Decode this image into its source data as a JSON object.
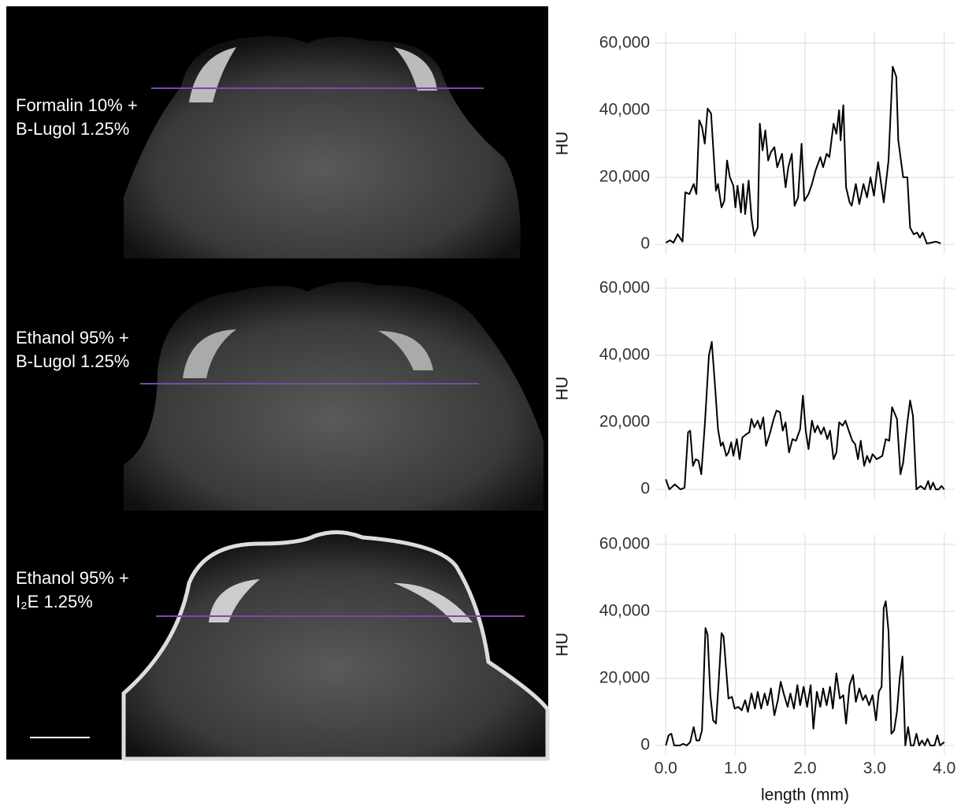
{
  "images": [
    {
      "label": [
        "Formalin 10% +",
        "B-Lugol 1.25%"
      ]
    },
    {
      "label": [
        "Ethanol 95% +",
        "B-Lugol 1.25%"
      ]
    },
    {
      "label": [
        "Ethanol 95% +",
        "I₂E 1.25%"
      ]
    }
  ],
  "chart_data": [
    {
      "type": "line",
      "ylabel": "HU",
      "color": "#000000",
      "grid": true,
      "xtick_labels": false,
      "xlim": [
        -0.15,
        4.15
      ],
      "ylim": [
        -2800,
        63000
      ],
      "xticks": [
        0,
        1,
        2,
        3,
        4
      ],
      "yticks": [
        0,
        {
          "value": 20000,
          "label": "20,000"
        },
        {
          "value": 40000,
          "label": "40,000"
        },
        {
          "value": 60000,
          "label": "60,000"
        }
      ],
      "x": [
        0,
        0.06,
        0.11,
        0.17,
        0.24,
        0.28,
        0.34,
        0.4,
        0.44,
        0.48,
        0.52,
        0.56,
        0.6,
        0.65,
        0.72,
        0.75,
        0.8,
        0.84,
        0.88,
        0.92,
        0.97,
        1.0,
        1.03,
        1.08,
        1.11,
        1.14,
        1.19,
        1.23,
        1.27,
        1.32,
        1.35,
        1.39,
        1.43,
        1.47,
        1.51,
        1.56,
        1.6,
        1.67,
        1.72,
        1.76,
        1.81,
        1.85,
        1.9,
        1.95,
        1.99,
        2.05,
        2.1,
        2.15,
        2.22,
        2.26,
        2.31,
        2.35,
        2.41,
        2.45,
        2.49,
        2.51,
        2.55,
        2.59,
        2.64,
        2.67,
        2.73,
        2.78,
        2.84,
        2.89,
        2.94,
        2.99,
        3.05,
        3.13,
        3.2,
        3.26,
        3.31,
        3.34,
        3.41,
        3.47,
        3.51,
        3.56,
        3.61,
        3.65,
        3.69,
        3.75,
        3.81,
        3.88,
        3.95
      ],
      "values": [
        500,
        1200,
        500,
        3000,
        800,
        15500,
        15000,
        18000,
        15000,
        37000,
        35000,
        30000,
        40500,
        39000,
        16000,
        18000,
        11000,
        13000,
        25000,
        20000,
        17500,
        11000,
        17500,
        9500,
        18000,
        9000,
        19000,
        8000,
        2500,
        5000,
        36000,
        28000,
        34000,
        25000,
        27500,
        29000,
        23000,
        27000,
        17000,
        23000,
        27000,
        11500,
        14000,
        30000,
        13000,
        15000,
        18000,
        22000,
        26000,
        23000,
        27000,
        26000,
        36000,
        33000,
        40000,
        31000,
        41500,
        17000,
        12500,
        11500,
        18000,
        12000,
        18000,
        14000,
        20000,
        14500,
        24500,
        12500,
        25000,
        53000,
        50000,
        31000,
        20000,
        20000,
        5000,
        3000,
        3500,
        2000,
        3500,
        200,
        500,
        800,
        300
      ]
    },
    {
      "type": "line",
      "ylabel": "HU",
      "color": "#000000",
      "grid": true,
      "xtick_labels": false,
      "xlim": [
        -0.15,
        4.15
      ],
      "ylim": [
        -2800,
        63000
      ],
      "xticks": [
        0,
        1,
        2,
        3,
        4
      ],
      "yticks": [
        0,
        {
          "value": 20000,
          "label": "20,000"
        },
        {
          "value": 40000,
          "label": "40,000"
        },
        {
          "value": 60000,
          "label": "60,000"
        }
      ],
      "x": [
        0,
        0.05,
        0.13,
        0.21,
        0.27,
        0.32,
        0.35,
        0.39,
        0.43,
        0.47,
        0.51,
        0.56,
        0.62,
        0.66,
        0.71,
        0.75,
        0.79,
        0.82,
        0.87,
        0.9,
        0.94,
        0.97,
        1.02,
        1.06,
        1.1,
        1.16,
        1.2,
        1.23,
        1.27,
        1.32,
        1.36,
        1.4,
        1.44,
        1.5,
        1.55,
        1.59,
        1.64,
        1.68,
        1.72,
        1.77,
        1.82,
        1.87,
        1.93,
        1.97,
        2.01,
        2.05,
        2.1,
        2.14,
        2.18,
        2.23,
        2.27,
        2.32,
        2.36,
        2.41,
        2.45,
        2.49,
        2.54,
        2.58,
        2.62,
        2.68,
        2.72,
        2.76,
        2.8,
        2.85,
        2.89,
        2.93,
        2.97,
        3.03,
        3.07,
        3.11,
        3.16,
        3.21,
        3.25,
        3.32,
        3.37,
        3.41,
        3.47,
        3.51,
        3.55,
        3.6,
        3.66,
        3.72,
        3.77,
        3.8,
        3.84,
        3.88,
        3.92,
        3.96,
        4.0
      ],
      "values": [
        3000,
        0,
        1500,
        0,
        500,
        17000,
        17500,
        7000,
        9000,
        8500,
        4500,
        19000,
        40000,
        44000,
        30000,
        18000,
        13000,
        14000,
        10000,
        11000,
        14000,
        10000,
        15000,
        9000,
        15500,
        16500,
        17000,
        21000,
        18500,
        20500,
        18000,
        21500,
        13000,
        17000,
        21000,
        23500,
        23000,
        17500,
        20000,
        11000,
        15000,
        14500,
        18000,
        28000,
        17500,
        12000,
        20500,
        17000,
        19000,
        16500,
        18500,
        15000,
        17500,
        9000,
        11000,
        20000,
        19000,
        20500,
        18000,
        14500,
        13500,
        9000,
        14500,
        7000,
        10000,
        8000,
        10500,
        9000,
        9500,
        10000,
        15000,
        14500,
        24500,
        21000,
        4500,
        8000,
        20000,
        26500,
        22000,
        0,
        1000,
        0,
        2500,
        0,
        2000,
        0,
        0,
        1000,
        0
      ]
    },
    {
      "type": "line",
      "ylabel": "HU",
      "xlabel": "length (mm)",
      "color": "#000000",
      "grid": true,
      "xtick_labels": true,
      "xlim": [
        -0.15,
        4.15
      ],
      "ylim": [
        -2800,
        63000
      ],
      "xticks": [
        {
          "value": 0,
          "label": "0.0"
        },
        {
          "value": 1,
          "label": "1.0"
        },
        {
          "value": 2,
          "label": "2.0"
        },
        {
          "value": 3,
          "label": "3.0"
        },
        {
          "value": 4,
          "label": "4.0"
        }
      ],
      "yticks": [
        0,
        {
          "value": 20000,
          "label": "20,000"
        },
        {
          "value": 40000,
          "label": "40,000"
        },
        {
          "value": 60000,
          "label": "60,000"
        }
      ],
      "x": [
        0,
        0.04,
        0.08,
        0.12,
        0.2,
        0.25,
        0.3,
        0.35,
        0.4,
        0.44,
        0.48,
        0.52,
        0.57,
        0.6,
        0.64,
        0.68,
        0.72,
        0.76,
        0.8,
        0.83,
        0.87,
        0.9,
        0.95,
        0.99,
        1.04,
        1.09,
        1.14,
        1.18,
        1.23,
        1.28,
        1.32,
        1.37,
        1.42,
        1.46,
        1.51,
        1.56,
        1.61,
        1.65,
        1.7,
        1.75,
        1.79,
        1.84,
        1.89,
        1.93,
        1.98,
        2.03,
        2.08,
        2.12,
        2.17,
        2.22,
        2.26,
        2.31,
        2.36,
        2.4,
        2.45,
        2.5,
        2.55,
        2.59,
        2.64,
        2.69,
        2.73,
        2.78,
        2.83,
        2.87,
        2.92,
        2.97,
        3.02,
        3.06,
        3.1,
        3.13,
        3.16,
        3.2,
        3.24,
        3.28,
        3.32,
        3.36,
        3.4,
        3.44,
        3.48,
        3.52,
        3.56,
        3.6,
        3.64,
        3.68,
        3.72,
        3.76,
        3.8,
        3.86,
        3.9,
        3.94,
        4.0
      ],
      "values": [
        0,
        3000,
        3500,
        0,
        0,
        500,
        0,
        1000,
        5500,
        1500,
        1500,
        4500,
        35000,
        33000,
        15000,
        7500,
        6500,
        19000,
        33500,
        32500,
        22000,
        14000,
        14500,
        11000,
        11500,
        10500,
        13500,
        10000,
        15500,
        11000,
        16000,
        11000,
        15500,
        12000,
        17000,
        9000,
        13500,
        19000,
        15000,
        11500,
        15500,
        11000,
        18000,
        12000,
        17500,
        11500,
        18000,
        5000,
        16000,
        11500,
        17000,
        12000,
        17500,
        11000,
        21500,
        14000,
        15000,
        6500,
        18000,
        21000,
        13000,
        17000,
        13500,
        15000,
        12000,
        15000,
        7500,
        16000,
        17500,
        41000,
        43000,
        34000,
        3500,
        4500,
        10000,
        20000,
        26500,
        0,
        5500,
        0,
        0,
        3500,
        0,
        1500,
        0,
        2000,
        0,
        0,
        3000,
        0,
        1000
      ]
    }
  ]
}
